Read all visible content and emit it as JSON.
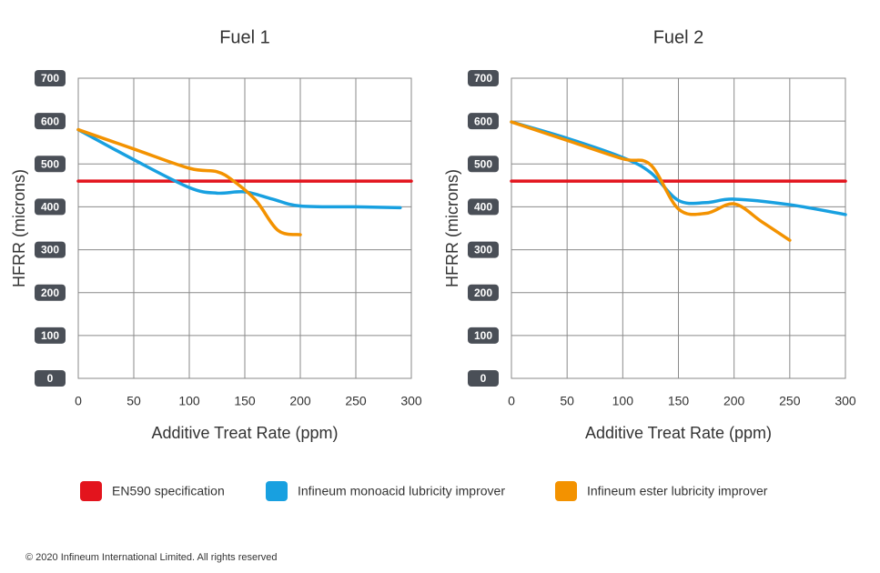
{
  "chart_data": [
    {
      "type": "line",
      "title": "Fuel 1",
      "x_label": "Additive Treat Rate (ppm)",
      "y_label": "HFRR (microns)",
      "xlim": [
        0,
        300
      ],
      "ylim": [
        0,
        700
      ],
      "xticks": [
        0,
        50,
        100,
        150,
        200,
        250,
        300
      ],
      "yticks": [
        0,
        100,
        200,
        300,
        400,
        500,
        600,
        700
      ],
      "grid": true,
      "series": [
        {
          "name": "EN590 specification",
          "color": "#e3141d",
          "x": [
            0,
            300
          ],
          "values": [
            460,
            460
          ]
        },
        {
          "name": "Infineum monoacid lubricity improver",
          "color": "#18a0e0",
          "x": [
            0,
            50,
            100,
            125,
            150,
            175,
            200,
            250,
            290
          ],
          "values": [
            580,
            510,
            445,
            432,
            435,
            418,
            402,
            400,
            398
          ]
        },
        {
          "name": "Infineum ester lubricity improver",
          "color": "#f39200",
          "x": [
            0,
            50,
            100,
            125,
            140,
            160,
            180,
            200
          ],
          "values": [
            580,
            535,
            490,
            482,
            460,
            415,
            345,
            335
          ]
        }
      ]
    },
    {
      "type": "line",
      "title": "Fuel 2",
      "x_label": "Additive Treat Rate (ppm)",
      "y_label": "HFRR (microns)",
      "xlim": [
        0,
        300
      ],
      "ylim": [
        0,
        700
      ],
      "xticks": [
        0,
        50,
        100,
        150,
        200,
        250,
        300
      ],
      "yticks": [
        0,
        100,
        200,
        300,
        400,
        500,
        600,
        700
      ],
      "grid": true,
      "series": [
        {
          "color": "#e3141d",
          "x": [
            0,
            300
          ],
          "values": [
            460,
            460
          ]
        },
        {
          "color": "#18a0e0",
          "x": [
            0,
            50,
            100,
            125,
            150,
            175,
            200,
            250,
            300
          ],
          "values": [
            598,
            560,
            515,
            480,
            415,
            410,
            418,
            405,
            382
          ]
        },
        {
          "color": "#f39200",
          "x": [
            0,
            50,
            100,
            125,
            150,
            175,
            200,
            225,
            250
          ],
          "values": [
            598,
            555,
            512,
            498,
            395,
            385,
            407,
            365,
            322
          ]
        }
      ]
    }
  ],
  "footer": "© 2020  Infineum International Limited. All rights reserved"
}
